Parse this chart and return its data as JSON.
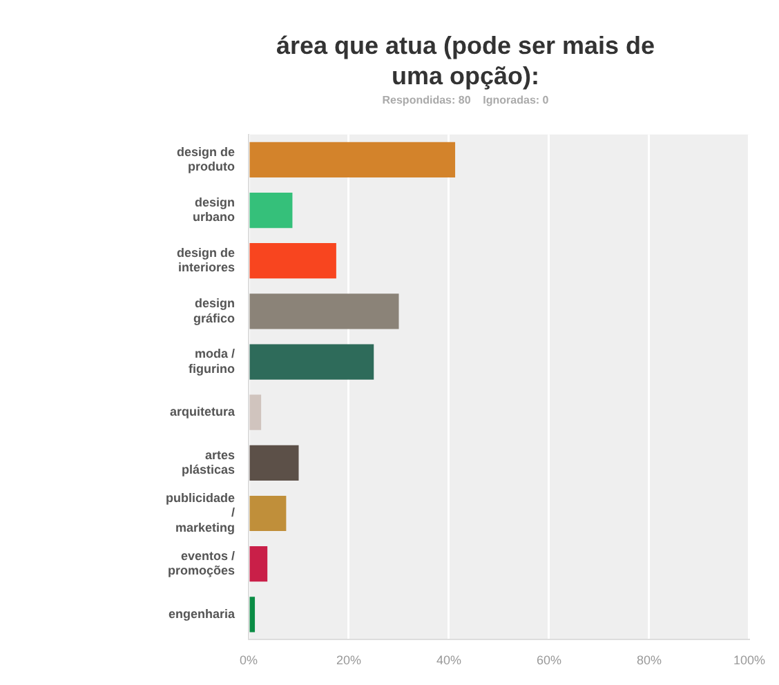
{
  "chart_data": {
    "type": "bar",
    "orientation": "horizontal",
    "title": "área que atua (pode ser mais de uma opção):",
    "subtitle": "Respondidas: 80    Ignoradas: 0",
    "categories": [
      "design de produto",
      "design urbano",
      "design de interiores",
      "design gráfico",
      "moda / figurino",
      "arquitetura",
      "artes plásticas",
      "publicidade / marketing",
      "eventos / promoções",
      "engenharia"
    ],
    "values": [
      41.25,
      8.75,
      17.5,
      30,
      25,
      2.5,
      10,
      7.5,
      3.75,
      1.25
    ],
    "colors": [
      "#d3832b",
      "#35c07a",
      "#f8451f",
      "#8b8378",
      "#2e6b5a",
      "#d0c4be",
      "#5c5048",
      "#c08f3a",
      "#c91f48",
      "#0a8c45"
    ],
    "xlim": [
      0,
      100
    ],
    "xticks": [
      {
        "value": 0,
        "label": "0%"
      },
      {
        "value": 20,
        "label": "20%"
      },
      {
        "value": 40,
        "label": "40%"
      },
      {
        "value": 60,
        "label": "60%"
      },
      {
        "value": 80,
        "label": "80%"
      },
      {
        "value": 100,
        "label": "100%"
      }
    ],
    "grid": "x",
    "legend": false
  }
}
